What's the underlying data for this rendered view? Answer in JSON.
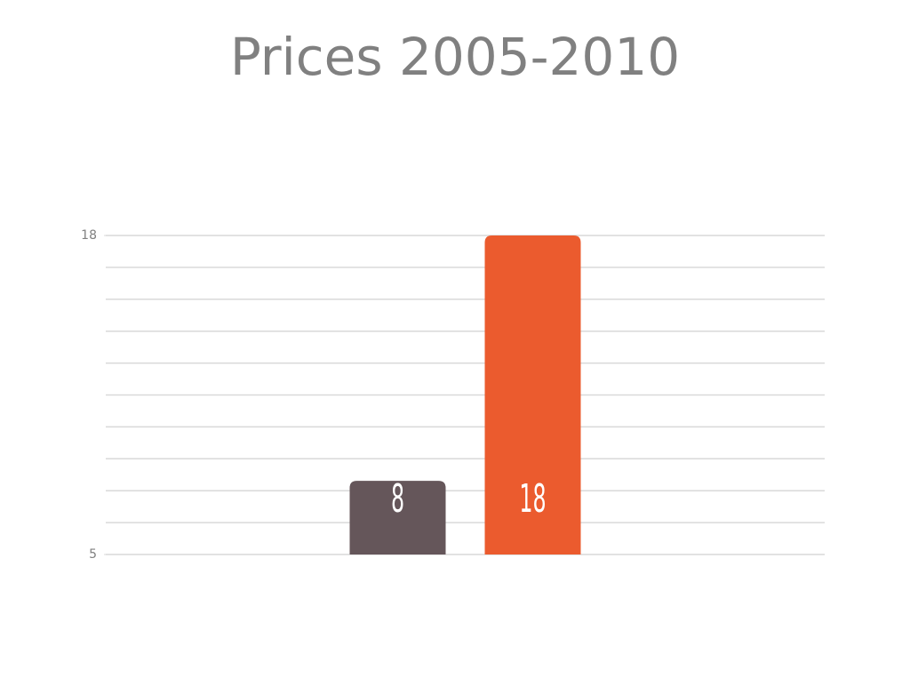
{
  "chart_data": {
    "type": "bar",
    "title": "Prices 2005-2010",
    "categories": [
      null
    ],
    "series": [
      {
        "color": "#65565a",
        "values": [
          8
        ]
      },
      {
        "color": "#eb5b2e",
        "values": [
          18
        ]
      }
    ],
    "ylim": [
      5,
      18
    ],
    "yticks": [
      5,
      18
    ],
    "grid": true,
    "minor_grid_divisions": 10
  }
}
